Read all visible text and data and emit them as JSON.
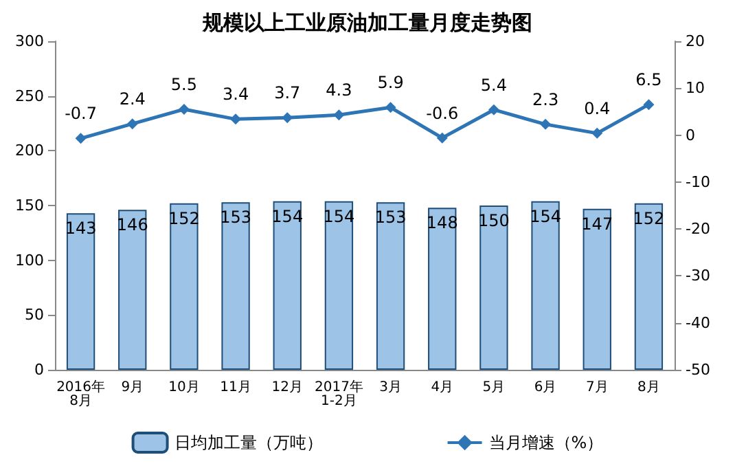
{
  "chart_data": {
    "type": "bar",
    "title": "规模以上工业原油加工量月度走势图",
    "categories": [
      "2016年\n8月",
      "9月",
      "10月",
      "11月",
      "12月",
      "2017年\n1-2月",
      "3月",
      "4月",
      "5月",
      "6月",
      "7月",
      "8月"
    ],
    "series": [
      {
        "name": "日均加工量（万吨）",
        "color": "#9dc3e6",
        "values": [
          143,
          146,
          152,
          153,
          154,
          154,
          153,
          148,
          150,
          154,
          147,
          152
        ]
      },
      {
        "name": "当月增速（%）",
        "type": "line",
        "axis": "y2",
        "color": "#2e75b6",
        "marker": "diamond",
        "values": [
          -0.7,
          2.4,
          5.5,
          3.4,
          3.7,
          4.3,
          5.9,
          -0.6,
          5.4,
          2.3,
          0.4,
          6.5
        ]
      }
    ],
    "ylim": [
      0,
      300
    ],
    "yticks": [
      0,
      50,
      100,
      150,
      200,
      250,
      300
    ],
    "y2lim": [
      -50,
      20
    ],
    "y2ticks": [
      -50,
      -40,
      -30,
      -20,
      -10,
      0,
      10,
      20
    ],
    "data_labels": true,
    "legend": "bottom",
    "grid": false
  }
}
